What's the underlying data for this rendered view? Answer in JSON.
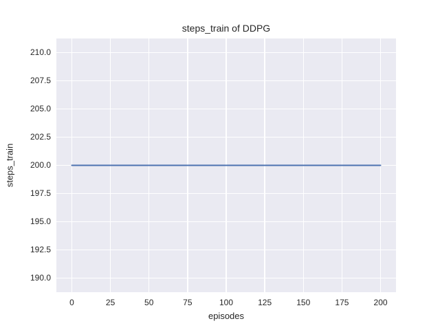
{
  "figure": {
    "background": "#ffffff",
    "plot_background": "#eaeaf2",
    "grid_color": "#ffffff",
    "text_color": "#262626"
  },
  "chart_data": {
    "type": "line",
    "title": "steps_train of DDPG",
    "xlabel": "episodes",
    "ylabel": "steps_train",
    "x_tick_labels": [
      "0",
      "25",
      "50",
      "75",
      "100",
      "125",
      "150",
      "175",
      "200"
    ],
    "y_tick_labels": [
      "190.0",
      "192.5",
      "195.0",
      "197.5",
      "200.0",
      "202.5",
      "205.0",
      "207.5",
      "210.0"
    ],
    "xlim": [
      -10,
      210
    ],
    "ylim": [
      188.75,
      211.25
    ],
    "grid": true,
    "legend_position": "none",
    "series": [
      {
        "name": "steps_train",
        "color": "#4c72b0",
        "x": [
          0,
          200
        ],
        "y": [
          200,
          200
        ],
        "note": "constant value 200 for all 200 training episodes"
      }
    ]
  }
}
